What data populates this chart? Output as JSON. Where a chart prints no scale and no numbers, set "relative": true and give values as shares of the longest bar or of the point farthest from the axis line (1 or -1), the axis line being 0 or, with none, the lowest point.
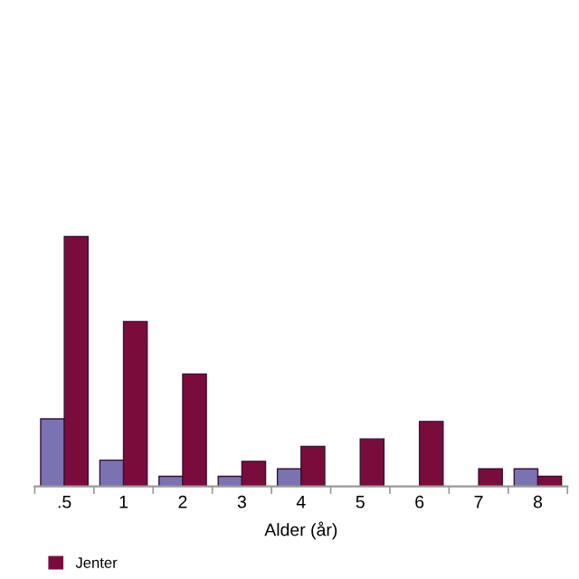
{
  "chart_data": {
    "type": "bar",
    "relative": true,
    "xlabel": "Alder (år)",
    "legend": "bottom left",
    "categories": [
      ".5",
      "1",
      "2",
      "3",
      "4",
      "5",
      "6",
      "7",
      "8"
    ],
    "series": [
      {
        "color": "#7b72b2",
        "values": [
          0.27,
          0.105,
          0.04,
          0.04,
          0.07,
          null,
          null,
          null,
          0.07
        ]
      },
      {
        "name": "Jenter",
        "color": "#7a0c3c",
        "values": [
          1,
          0.66,
          0.45,
          0.1,
          0.16,
          0.19,
          0.26,
          0.07,
          0.04
        ]
      }
    ]
  }
}
